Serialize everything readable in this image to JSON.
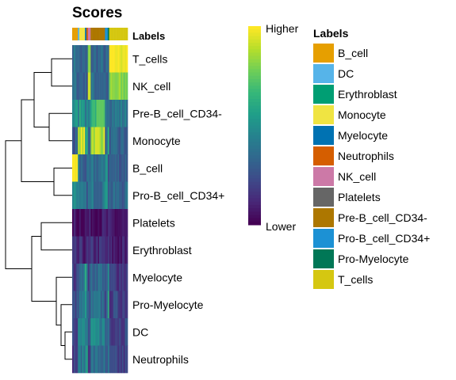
{
  "chart_data": {
    "type": "heatmap",
    "title": "Scores",
    "annotation_track_label": "Labels",
    "rows": [
      "T_cells",
      "NK_cell",
      "Pre-B_cell_CD34-",
      "Monocyte",
      "B_cell",
      "Pro-B_cell_CD34+",
      "Platelets",
      "Erythroblast",
      "Myelocyte",
      "Pro-Myelocyte",
      "DC",
      "Neutrophils"
    ],
    "color_scale": {
      "palette": "viridis",
      "high_label": "Higher",
      "low_label": "Lower",
      "stops": [
        "#440154",
        "#482878",
        "#3e4a89",
        "#31688e",
        "#26828e",
        "#1f9e89",
        "#35b779",
        "#6ece58",
        "#b5de2b",
        "#fde725"
      ]
    },
    "column_groups": [
      {
        "label": "B_cell",
        "count": 4
      },
      {
        "label": "DC",
        "count": 1
      },
      {
        "label": "Monocyte",
        "count": 4
      },
      {
        "label": "Myelocyte",
        "count": 1
      },
      {
        "label": "Neutrophils",
        "count": 1
      },
      {
        "label": "NK_cell",
        "count": 2
      },
      {
        "label": "Pre-B_cell_CD34-",
        "count": 10
      },
      {
        "label": "Pro-B_cell_CD34+",
        "count": 2
      },
      {
        "label": "Pro-Myelocyte",
        "count": 1
      },
      {
        "label": "T_cells",
        "count": 13
      }
    ],
    "group_profiles": {
      "B_cell": {
        "T_cells": 0.38,
        "NK_cell": 0.35,
        "Pre-B_cell_CD34-": 0.5,
        "Monocyte": 0.28,
        "B_cell": 1.0,
        "Pro-B_cell_CD34+": 0.5,
        "Platelets": 0.05,
        "Erythroblast": 0.1,
        "Myelocyte": 0.18,
        "Pro-Myelocyte": 0.22,
        "DC": 0.25,
        "Neutrophils": 0.2
      },
      "DC": {
        "T_cells": 0.3,
        "NK_cell": 0.32,
        "Pre-B_cell_CD34-": 0.45,
        "Monocyte": 0.82,
        "B_cell": 0.4,
        "Pro-B_cell_CD34+": 0.4,
        "Platelets": 0.05,
        "Erythroblast": 0.08,
        "Myelocyte": 0.35,
        "Pro-Myelocyte": 0.35,
        "DC": 0.55,
        "Neutrophils": 0.35
      },
      "Monocyte": {
        "T_cells": 0.3,
        "NK_cell": 0.32,
        "Pre-B_cell_CD34-": 0.58,
        "Monocyte": 0.92,
        "B_cell": 0.32,
        "Pro-B_cell_CD34+": 0.35,
        "Platelets": 0.06,
        "Erythroblast": 0.1,
        "Myelocyte": 0.4,
        "Pro-Myelocyte": 0.38,
        "DC": 0.45,
        "Neutrophils": 0.4
      },
      "Myelocyte": {
        "T_cells": 0.28,
        "NK_cell": 0.28,
        "Pre-B_cell_CD34-": 0.42,
        "Monocyte": 0.55,
        "B_cell": 0.28,
        "Pro-B_cell_CD34+": 0.32,
        "Platelets": 0.05,
        "Erythroblast": 0.1,
        "Myelocyte": 0.55,
        "Pro-Myelocyte": 0.5,
        "DC": 0.4,
        "Neutrophils": 0.45
      },
      "Neutrophils": {
        "T_cells": 0.28,
        "NK_cell": 0.3,
        "Pre-B_cell_CD34-": 0.42,
        "Monocyte": 0.6,
        "B_cell": 0.28,
        "Pro-B_cell_CD34+": 0.32,
        "Platelets": 0.05,
        "Erythroblast": 0.1,
        "Myelocyte": 0.45,
        "Pro-Myelocyte": 0.42,
        "DC": 0.4,
        "Neutrophils": 0.6
      },
      "NK_cell": {
        "T_cells": 0.78,
        "NK_cell": 0.95,
        "Pre-B_cell_CD34-": 0.45,
        "Monocyte": 0.35,
        "B_cell": 0.3,
        "Pro-B_cell_CD34+": 0.35,
        "Platelets": 0.05,
        "Erythroblast": 0.08,
        "Myelocyte": 0.2,
        "Pro-Myelocyte": 0.22,
        "DC": 0.25,
        "Neutrophils": 0.22
      },
      "Pre-B_cell_CD34-": {
        "T_cells": 0.32,
        "NK_cell": 0.34,
        "Pre-B_cell_CD34-": 0.68,
        "Monocyte": 0.9,
        "B_cell": 0.35,
        "Pro-B_cell_CD34+": 0.38,
        "Platelets": 0.06,
        "Erythroblast": 0.12,
        "Myelocyte": 0.35,
        "Pro-Myelocyte": 0.35,
        "DC": 0.45,
        "Neutrophils": 0.35
      },
      "Pro-B_cell_CD34+": {
        "T_cells": 0.3,
        "NK_cell": 0.3,
        "Pre-B_cell_CD34-": 0.45,
        "Monocyte": 0.35,
        "B_cell": 0.55,
        "Pro-B_cell_CD34+": 0.6,
        "Platelets": 0.05,
        "Erythroblast": 0.1,
        "Myelocyte": 0.22,
        "Pro-Myelocyte": 0.25,
        "DC": 0.3,
        "Neutrophils": 0.22
      },
      "Pro-Myelocyte": {
        "T_cells": 0.28,
        "NK_cell": 0.28,
        "Pre-B_cell_CD34-": 0.42,
        "Monocyte": 0.55,
        "B_cell": 0.28,
        "Pro-B_cell_CD34+": 0.32,
        "Platelets": 0.05,
        "Erythroblast": 0.1,
        "Myelocyte": 0.5,
        "Pro-Myelocyte": 0.55,
        "DC": 0.4,
        "Neutrophils": 0.42
      },
      "T_cells": {
        "T_cells": 1.0,
        "NK_cell": 0.8,
        "Pre-B_cell_CD34-": 0.4,
        "Monocyte": 0.3,
        "B_cell": 0.3,
        "Pro-B_cell_CD34+": 0.32,
        "Platelets": 0.04,
        "Erythroblast": 0.07,
        "Myelocyte": 0.18,
        "Pro-Myelocyte": 0.2,
        "DC": 0.22,
        "Neutrophils": 0.18
      }
    },
    "row_dendrogram": [
      "T_cells",
      "NK_cell",
      "Pre-B_cell_CD34-",
      "Monocyte",
      "B_cell",
      "Pro-B_cell_CD34+",
      "Platelets",
      "Erythroblast",
      "Myelocyte",
      "Pro-Myelocyte",
      "DC",
      "Neutrophils"
    ]
  },
  "legend": {
    "title": "Labels",
    "items": [
      {
        "label": "B_cell",
        "color": "#E69F00"
      },
      {
        "label": "DC",
        "color": "#56B4E9"
      },
      {
        "label": "Erythroblast",
        "color": "#009E73"
      },
      {
        "label": "Monocyte",
        "color": "#F0E442"
      },
      {
        "label": "Myelocyte",
        "color": "#0072B2"
      },
      {
        "label": "Neutrophils",
        "color": "#D55E00"
      },
      {
        "label": "NK_cell",
        "color": "#CC79A7"
      },
      {
        "label": "Platelets",
        "color": "#666666"
      },
      {
        "label": "Pre-B_cell_CD34-",
        "color": "#AD7700"
      },
      {
        "label": "Pro-B_cell_CD34+",
        "color": "#1C91D4"
      },
      {
        "label": "Pro-Myelocyte",
        "color": "#007756"
      },
      {
        "label": "T_cells",
        "color": "#D5C711"
      }
    ]
  }
}
